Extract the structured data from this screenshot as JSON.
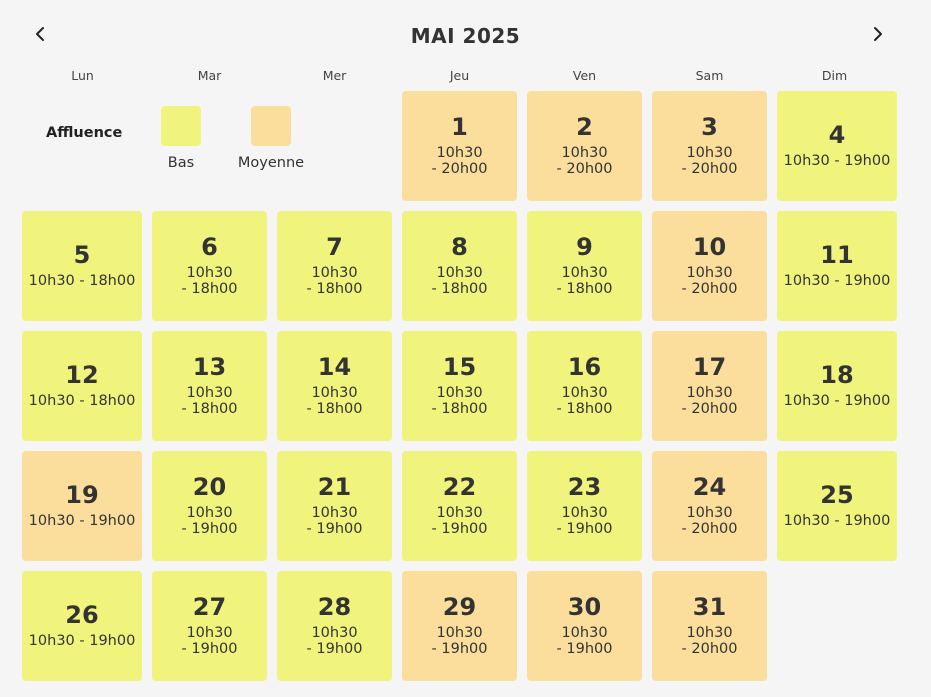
{
  "calendar": {
    "title": "MAI 2025",
    "prev_icon": "chevron-left-icon",
    "next_icon": "chevron-right-icon",
    "weekdays": [
      "Lun",
      "Mar",
      "Mer",
      "Jeu",
      "Ven",
      "Sam",
      "Dim"
    ]
  },
  "legend": {
    "title": "Affluence",
    "items": [
      {
        "label": "Bas",
        "color": "#f0f47c"
      },
      {
        "label": "Moyenne",
        "color": "#fbde9c"
      }
    ]
  },
  "days": [
    {
      "day": "1",
      "hours_a": "10h30",
      "hours_b": "- 20h00",
      "level": "Moyenne"
    },
    {
      "day": "2",
      "hours_a": "10h30",
      "hours_b": "- 20h00",
      "level": "Moyenne"
    },
    {
      "day": "3",
      "hours_a": "10h30",
      "hours_b": "- 20h00",
      "level": "Moyenne"
    },
    {
      "day": "4",
      "hours_a": "10h30 - 19h00",
      "hours_b": "",
      "level": "Bas"
    },
    {
      "day": "5",
      "hours_a": "10h30 - 18h00",
      "hours_b": "",
      "level": "Bas"
    },
    {
      "day": "6",
      "hours_a": "10h30",
      "hours_b": "- 18h00",
      "level": "Bas"
    },
    {
      "day": "7",
      "hours_a": "10h30",
      "hours_b": "- 18h00",
      "level": "Bas"
    },
    {
      "day": "8",
      "hours_a": "10h30",
      "hours_b": "- 18h00",
      "level": "Bas"
    },
    {
      "day": "9",
      "hours_a": "10h30",
      "hours_b": "- 18h00",
      "level": "Bas"
    },
    {
      "day": "10",
      "hours_a": "10h30",
      "hours_b": "- 20h00",
      "level": "Moyenne"
    },
    {
      "day": "11",
      "hours_a": "10h30 - 19h00",
      "hours_b": "",
      "level": "Bas"
    },
    {
      "day": "12",
      "hours_a": "10h30 - 18h00",
      "hours_b": "",
      "level": "Bas"
    },
    {
      "day": "13",
      "hours_a": "10h30",
      "hours_b": "- 18h00",
      "level": "Bas"
    },
    {
      "day": "14",
      "hours_a": "10h30",
      "hours_b": "- 18h00",
      "level": "Bas"
    },
    {
      "day": "15",
      "hours_a": "10h30",
      "hours_b": "- 18h00",
      "level": "Bas"
    },
    {
      "day": "16",
      "hours_a": "10h30",
      "hours_b": "- 18h00",
      "level": "Bas"
    },
    {
      "day": "17",
      "hours_a": "10h30",
      "hours_b": "- 20h00",
      "level": "Moyenne"
    },
    {
      "day": "18",
      "hours_a": "10h30 - 19h00",
      "hours_b": "",
      "level": "Bas"
    },
    {
      "day": "19",
      "hours_a": "10h30 - 19h00",
      "hours_b": "",
      "level": "Moyenne"
    },
    {
      "day": "20",
      "hours_a": "10h30",
      "hours_b": "- 19h00",
      "level": "Bas"
    },
    {
      "day": "21",
      "hours_a": "10h30",
      "hours_b": "- 19h00",
      "level": "Bas"
    },
    {
      "day": "22",
      "hours_a": "10h30",
      "hours_b": "- 19h00",
      "level": "Bas"
    },
    {
      "day": "23",
      "hours_a": "10h30",
      "hours_b": "- 19h00",
      "level": "Bas"
    },
    {
      "day": "24",
      "hours_a": "10h30",
      "hours_b": "- 20h00",
      "level": "Moyenne"
    },
    {
      "day": "25",
      "hours_a": "10h30 - 19h00",
      "hours_b": "",
      "level": "Bas"
    },
    {
      "day": "26",
      "hours_a": "10h30 - 19h00",
      "hours_b": "",
      "level": "Bas"
    },
    {
      "day": "27",
      "hours_a": "10h30",
      "hours_b": "- 19h00",
      "level": "Bas"
    },
    {
      "day": "28",
      "hours_a": "10h30",
      "hours_b": "- 19h00",
      "level": "Bas"
    },
    {
      "day": "29",
      "hours_a": "10h30",
      "hours_b": "- 19h00",
      "level": "Moyenne"
    },
    {
      "day": "30",
      "hours_a": "10h30",
      "hours_b": "- 19h00",
      "level": "Moyenne"
    },
    {
      "day": "31",
      "hours_a": "10h30",
      "hours_b": "- 20h00",
      "level": "Moyenne"
    }
  ]
}
